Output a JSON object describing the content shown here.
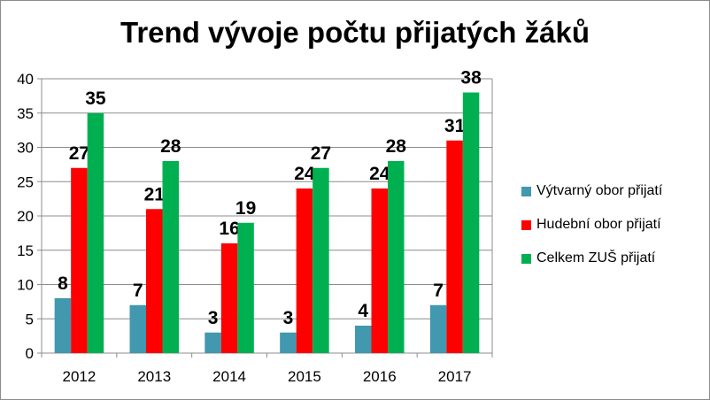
{
  "chart_data": {
    "type": "bar",
    "title": "Trend vývoje počtu přijatých žáků",
    "categories": [
      "2012",
      "2013",
      "2014",
      "2015",
      "2016",
      "2017"
    ],
    "series": [
      {
        "name": "Výtvarný obor přijatí",
        "color": "#4198AF",
        "values": [
          8,
          7,
          3,
          3,
          4,
          7
        ]
      },
      {
        "name": "Hudební obor přijatí",
        "color": "#FF0000",
        "values": [
          27,
          21,
          16,
          24,
          24,
          31
        ]
      },
      {
        "name": "Celkem ZUŠ přijatí",
        "color": "#00B050",
        "values": [
          35,
          28,
          19,
          27,
          28,
          38
        ]
      }
    ],
    "ylim": [
      0,
      40
    ],
    "yticks": [
      0,
      5,
      10,
      15,
      20,
      25,
      30,
      35,
      40
    ],
    "xlabel": "",
    "ylabel": "",
    "grid": true,
    "legend_position": "right",
    "data_labels": true
  }
}
